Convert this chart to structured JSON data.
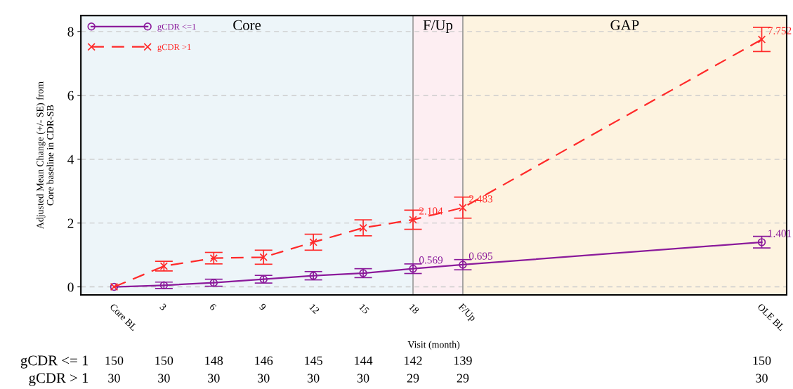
{
  "chart_data": {
    "type": "line",
    "xlabel": "Visit (month)",
    "ylabel": "Adjusted Mean Change (+/- SE) from\nCore baseline in CDR-SB",
    "x": [
      0,
      3,
      6,
      9,
      12,
      15,
      18,
      21,
      39
    ],
    "xlim": [
      -2,
      40.5
    ],
    "xticks": [
      {
        "value": 0,
        "label": "Core BL"
      },
      3,
      6,
      9,
      12,
      15,
      18,
      {
        "value": 21,
        "label": "F/Up"
      },
      {
        "value": 39,
        "label": "OLE BL"
      }
    ],
    "ylim": [
      -0.25,
      8.5
    ],
    "yticks": [
      0,
      2,
      4,
      6,
      8
    ],
    "series": [
      {
        "name": "gCDR <=1",
        "color": "#8b1a9b",
        "marker": "circle",
        "line_style": "solid",
        "values": [
          0,
          0.05,
          0.13,
          0.24,
          0.35,
          0.43,
          0.569,
          0.695,
          1.401
        ],
        "errors": [
          null,
          0.1,
          0.11,
          0.12,
          0.13,
          0.14,
          0.15,
          0.16,
          0.18
        ],
        "value_labels": [
          null,
          null,
          null,
          null,
          null,
          null,
          "0.569",
          "0.695",
          "1.401"
        ]
      },
      {
        "name": "gCDR >1",
        "color": "#ff2a2a",
        "marker": "cross",
        "line_style": "dashed",
        "values": [
          0,
          0.65,
          0.9,
          0.93,
          1.4,
          1.85,
          2.104,
          2.483,
          7.752
        ],
        "errors": [
          null,
          0.15,
          0.18,
          0.22,
          0.25,
          0.25,
          0.3,
          0.33,
          0.38
        ],
        "value_labels": [
          null,
          null,
          null,
          null,
          null,
          null,
          "2.104",
          "2.483",
          "7.752"
        ]
      }
    ],
    "bands": [
      {
        "axis": "x",
        "from": -2,
        "to": 18,
        "label": "Core",
        "color": "#edf5f9"
      },
      {
        "axis": "x",
        "from": 18,
        "to": 21,
        "label": "F/Up",
        "color": "#fdeef2"
      },
      {
        "axis": "x",
        "from": 21,
        "to": 40.5,
        "label": "GAP",
        "color": "#fdf3e0"
      }
    ],
    "ref_lines": [
      {
        "axis": "x",
        "value": 18,
        "color": "#999999"
      },
      {
        "axis": "x",
        "value": 21,
        "color": "#999999"
      }
    ],
    "annotations": [
      "gCDR <= 1",
      "150",
      "150",
      "148",
      "146",
      "145",
      "144",
      "142",
      "139",
      "150",
      "gCDR > 1",
      "30",
      "30",
      "30",
      "30",
      "30",
      "30",
      "29",
      "29",
      "30"
    ],
    "grid": "y",
    "legend": "top left"
  }
}
